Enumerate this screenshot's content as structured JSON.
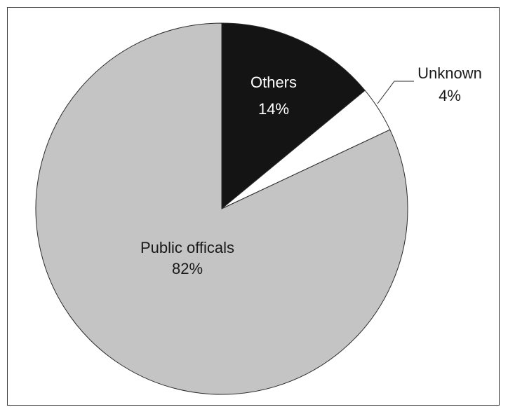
{
  "chart_data": {
    "type": "pie",
    "title": "",
    "slices": [
      {
        "label": "Others",
        "value": 14,
        "value_label": "14%",
        "color": "#141414",
        "text_color": "#ffffff"
      },
      {
        "label": "Unknown",
        "value": 4,
        "value_label": "4%",
        "color": "#ffffff",
        "text_color": "#1a1a1a"
      },
      {
        "label": "Public officals",
        "value": 82,
        "value_label": "82%",
        "color": "#c4c4c4",
        "text_color": "#1a1a1a"
      }
    ],
    "start_angle": "12 o'clock",
    "direction": "clockwise",
    "legend": "none"
  }
}
